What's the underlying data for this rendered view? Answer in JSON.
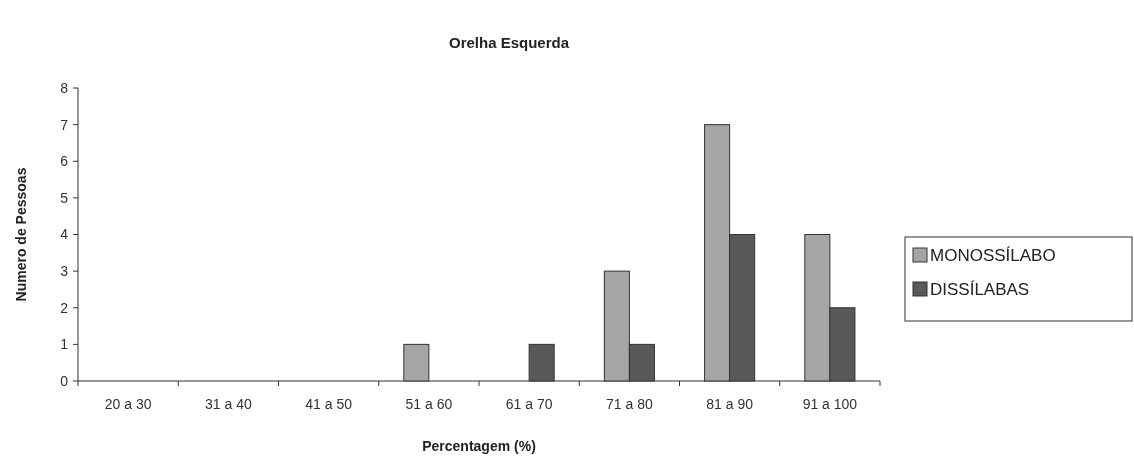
{
  "chart_data": {
    "type": "bar",
    "title": "Orelha Esquerda",
    "xlabel": "Percentagem (%)",
    "ylabel": "Numero de Pessoas",
    "categories": [
      "20 a 30",
      "31 a 40",
      "41 a 50",
      "51 a 60",
      "61 a 70",
      "71 a 80",
      "81 a 90",
      "91 a 100"
    ],
    "series": [
      {
        "name": "MONOSSÍLABO",
        "color": "#a6a6a6",
        "values": [
          0,
          0,
          0,
          1,
          0,
          3,
          7,
          4
        ]
      },
      {
        "name": "DISSÍLABAS",
        "color": "#595959",
        "values": [
          0,
          0,
          0,
          0,
          1,
          1,
          4,
          2
        ]
      }
    ],
    "ylim": [
      0,
      8
    ],
    "yticks": [
      0,
      1,
      2,
      3,
      4,
      5,
      6,
      7,
      8
    ],
    "grid": false,
    "legend": "right"
  }
}
